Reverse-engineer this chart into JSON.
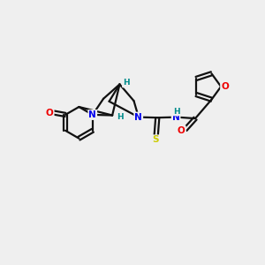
{
  "bg_color": "#efefef",
  "atom_colors": {
    "N_blue": "#0000ee",
    "N_teal": "#008b8b",
    "O": "#ee0000",
    "S": "#cccc00",
    "H_teal": "#008b8b"
  },
  "bond_color": "#111111",
  "figsize": [
    3.0,
    3.0
  ],
  "dpi": 100,
  "xlim": [
    0,
    10
  ],
  "ylim": [
    0,
    10
  ]
}
